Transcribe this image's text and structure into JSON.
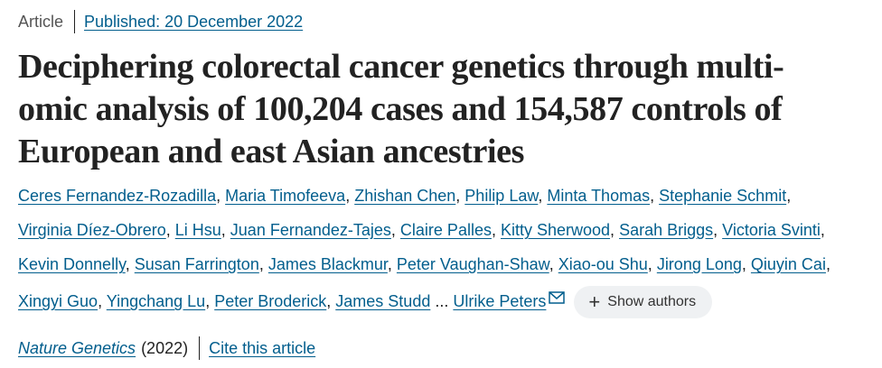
{
  "article": {
    "type": "Article",
    "published": "Published: 20 December 2022",
    "title": "Deciphering colorectal cancer genetics through multi-omic analysis of 100,204 cases and 154,587 controls of European and east Asian ancestries"
  },
  "authors": {
    "names": [
      "Ceres Fernandez-Rozadilla",
      "Maria Timofeeva",
      "Zhishan Chen",
      "Philip Law",
      "Minta Thomas",
      "Stephanie Schmit",
      "Virginia Díez-Obrero",
      "Li Hsu",
      "Juan Fernandez-Tajes",
      "Claire Palles",
      "Kitty Sherwood",
      "Sarah Briggs",
      "Victoria Svinti",
      "Kevin Donnelly",
      "Susan Farrington",
      "James Blackmur",
      "Peter Vaughan-Shaw",
      "Xiao-ou Shu",
      "Jirong Long",
      "Qiuyin Cai",
      "Xingyi Guo",
      "Yingchang Lu",
      "Peter Broderick",
      "James Studd"
    ],
    "ellipsis": "...",
    "last_author": "Ulrike Peters",
    "show_authors_label": "Show authors"
  },
  "citation": {
    "journal": "Nature Genetics",
    "year": "(2022)",
    "cite_label": "Cite this article"
  },
  "icons": {
    "mail": "mail-icon",
    "show_authors": "plus-icon"
  },
  "colors": {
    "link": "#025e8d",
    "text": "#222222",
    "button_bg": "#eff1f3"
  }
}
